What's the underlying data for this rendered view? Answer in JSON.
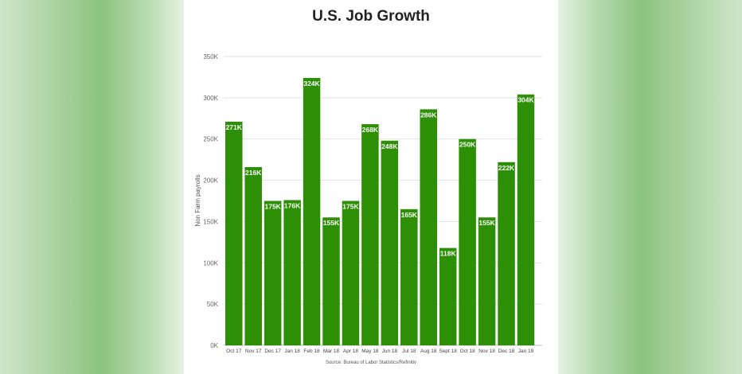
{
  "chart_data": {
    "type": "bar",
    "title": "U.S. Job Growth",
    "ylabel": "Non Farm payrolls",
    "xlabel": "",
    "source": "Source: Bureau of Labor Statistics/Refinitiv",
    "categories": [
      "Oct 17",
      "Nov 17",
      "Dec 17",
      "Jan 18",
      "Feb 18",
      "Mar 18",
      "Apr 18",
      "May 18",
      "Jun 18",
      "Jul 18",
      "Aug 18",
      "Sept 18",
      "Oct 18",
      "Nov 18",
      "Dec 18",
      "Jan 19"
    ],
    "values": [
      271,
      216,
      175,
      176,
      324,
      155,
      175,
      268,
      248,
      165,
      286,
      118,
      250,
      155,
      222,
      304
    ],
    "data_labels": [
      "271K",
      "216K",
      "175K",
      "176K",
      "324K",
      "155K",
      "175K",
      "268K",
      "248K",
      "165K",
      "286K",
      "118K",
      "250K",
      "155K",
      "222K",
      "304K"
    ],
    "yticks": [
      0,
      50,
      100,
      150,
      200,
      250,
      300,
      350
    ],
    "ytick_labels": [
      "0K",
      "50K",
      "100K",
      "150K",
      "200K",
      "250K",
      "300K",
      "350K"
    ],
    "ylim": [
      0,
      350
    ],
    "grid": true,
    "bar_color": "#2d8f05",
    "legend": "none"
  }
}
